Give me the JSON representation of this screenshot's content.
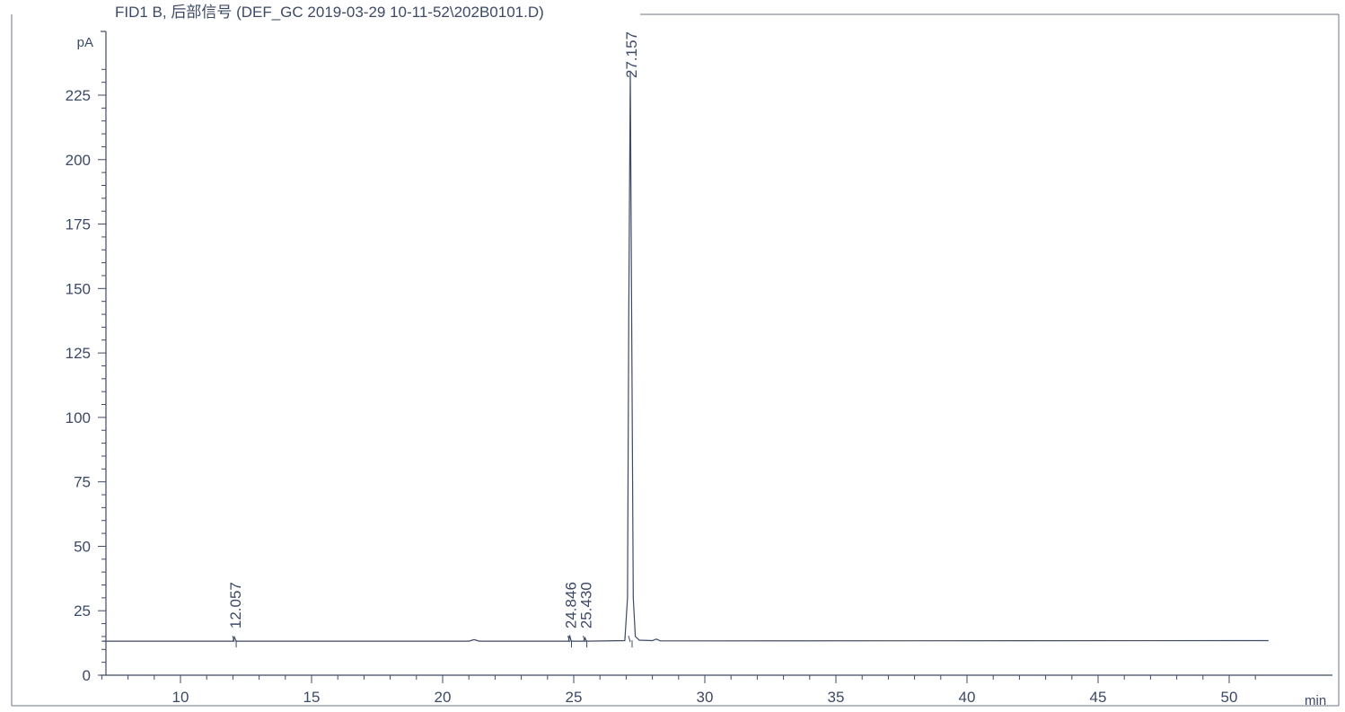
{
  "chart_data": {
    "type": "line",
    "title": "FID1 B, 后部信号 (DEF_GC 2019-03-29 10-11-52\\202B0101.D)",
    "xlabel": "min",
    "ylabel": "pA",
    "xlim": [
      7,
      51.5
    ],
    "ylim": [
      0,
      240
    ],
    "x_ticks": [
      10,
      15,
      20,
      25,
      30,
      35,
      40,
      45,
      50
    ],
    "x_tick_labels": [
      "10",
      "15",
      "20",
      "25",
      "30",
      "35",
      "40",
      "45",
      "50"
    ],
    "y_ticks": [
      0,
      25,
      50,
      75,
      100,
      125,
      150,
      175,
      200,
      225
    ],
    "y_tick_labels": [
      "0",
      "25",
      "50",
      "75",
      "100",
      "125",
      "150",
      "175",
      "200",
      "225"
    ],
    "grid": false,
    "baseline": 13.2,
    "series": [
      {
        "x": [
          7.0,
          12.0,
          12.057,
          12.12,
          21.0,
          21.2,
          21.4,
          24.8,
          24.846,
          24.9,
          25.38,
          25.43,
          25.48,
          26.95,
          27.05,
          27.1,
          27.157,
          27.21,
          27.27,
          27.35,
          27.5,
          28.0,
          28.15,
          28.3,
          51.5
        ],
        "y": [
          13.2,
          13.2,
          14.8,
          13.2,
          13.2,
          13.8,
          13.2,
          13.2,
          15.5,
          13.2,
          13.2,
          14.5,
          13.2,
          13.4,
          30.0,
          140.0,
          234.0,
          140.0,
          30.0,
          15.0,
          13.6,
          13.4,
          14.0,
          13.3,
          13.4
        ]
      }
    ],
    "peaks": [
      {
        "rt": 12.057,
        "label": "12.057"
      },
      {
        "rt": 24.846,
        "label": "24.846"
      },
      {
        "rt": 25.43,
        "label": "25.430"
      },
      {
        "rt": 27.157,
        "label": "27.157"
      }
    ],
    "colors": {
      "ink": "#3c4a66",
      "frame": "#6b7488",
      "background": "#ffffff"
    }
  }
}
